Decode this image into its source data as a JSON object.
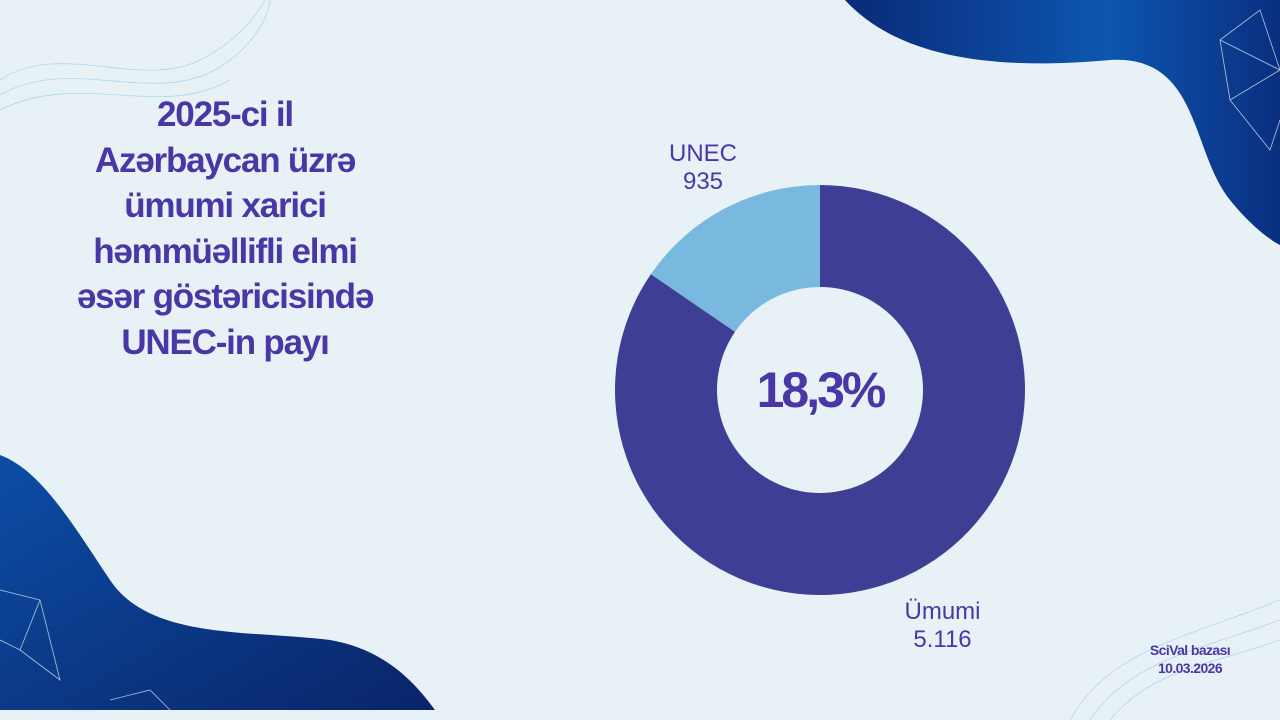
{
  "title_lines": [
    "2025-ci il",
    "Azərbaycan üzrə",
    "ümumi xarici",
    "həmmüəllifli elmi",
    "əsər göstəricisində",
    "UNEC-in payı"
  ],
  "chart_data": {
    "type": "pie",
    "variant": "donut",
    "center_label": "18,3%",
    "slices": [
      {
        "name": "UNEC",
        "value": 935,
        "value_label": "935",
        "color": "#79b9e0"
      },
      {
        "name": "Ümumi",
        "value": 5116,
        "value_label": "5.116",
        "color": "#3f3e95"
      }
    ]
  },
  "source": {
    "line1": "SciVal bazası",
    "line2": "10.03.2026"
  },
  "colors": {
    "text": "#4a37a6",
    "background": "#e8f1f6",
    "decor": "#0b3d8f"
  }
}
